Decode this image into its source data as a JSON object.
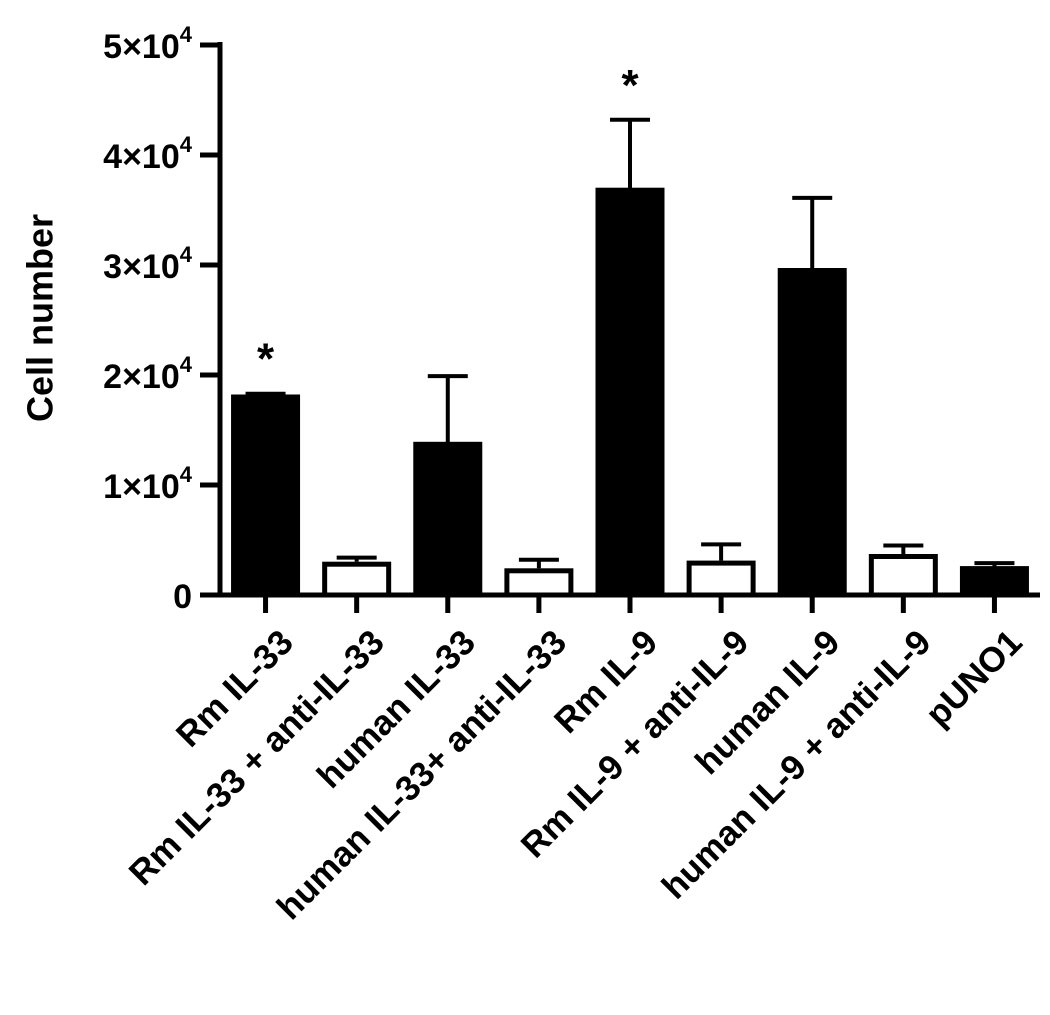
{
  "chart_data": {
    "type": "bar",
    "title": "",
    "xlabel": "",
    "ylabel": "Cell number",
    "ylim": [
      0,
      50000
    ],
    "yticks": [
      {
        "value": 0,
        "label": "0",
        "exp": ""
      },
      {
        "value": 10000,
        "label": "1×10",
        "exp": "4"
      },
      {
        "value": 20000,
        "label": "2×10",
        "exp": "4"
      },
      {
        "value": 30000,
        "label": "3×10",
        "exp": "4"
      },
      {
        "value": 40000,
        "label": "4×10",
        "exp": "4"
      },
      {
        "value": 50000,
        "label": "5×10",
        "exp": "4"
      }
    ],
    "categories": [
      "Rm IL-33",
      "Rm IL-33 + anti-IL-33",
      "human IL-33",
      "human IL-33+ anti-IL-33",
      "Rm IL-9",
      "Rm IL-9 + anti-IL-9",
      "human IL-9",
      "human IL-9 + anti-IL-9",
      "pUNO1"
    ],
    "values": [
      18000,
      2800,
      13700,
      2200,
      36800,
      2900,
      29500,
      3500,
      2400
    ],
    "errors": [
      300,
      600,
      6200,
      1000,
      6400,
      1700,
      6600,
      1000,
      500
    ],
    "fills": [
      "#000000",
      "#ffffff",
      "#000000",
      "#ffffff",
      "#000000",
      "#ffffff",
      "#000000",
      "#ffffff",
      "#000000"
    ],
    "significance": [
      "*",
      "",
      "",
      "",
      "*",
      "",
      "",
      "",
      ""
    ],
    "grid": false,
    "legend": "none"
  }
}
